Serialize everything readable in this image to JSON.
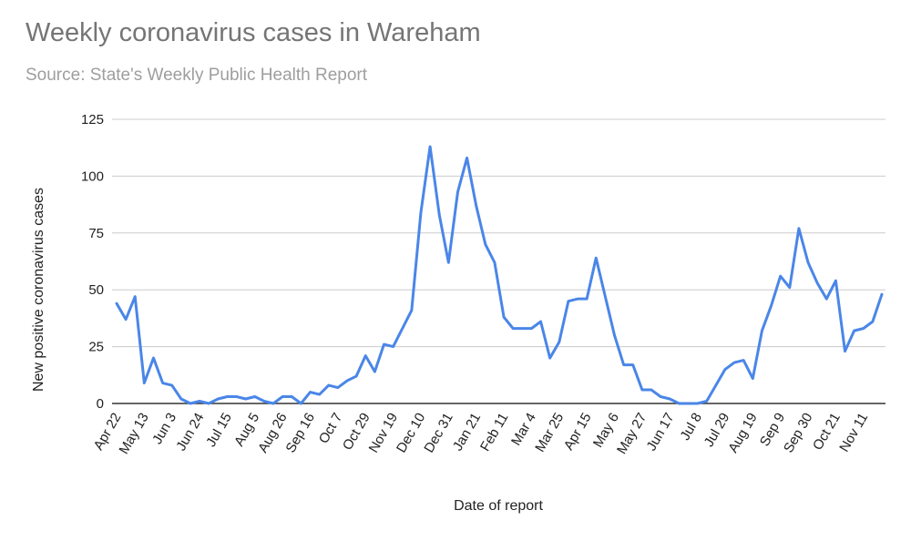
{
  "chart_data": {
    "type": "line",
    "title": "Weekly coronavirus cases in Wareham",
    "subtitle": "Source: State's Weekly Public Health Report",
    "xlabel": "Date of report",
    "ylabel": "New positive coronavirus cases",
    "ylim": [
      0,
      125
    ],
    "yticks": [
      0,
      25,
      50,
      75,
      100,
      125
    ],
    "grid": true,
    "legend": "none",
    "line_color": "#4a86e8",
    "x_tick_labels": [
      "Apr 22",
      "May 13",
      "Jun 3",
      "Jun 24",
      "Jul 15",
      "Aug 5",
      "Aug 26",
      "Sep 16",
      "Oct 7",
      "Oct 29",
      "Nov 19",
      "Dec 10",
      "Dec 31",
      "Jan 21",
      "Feb 11",
      "Mar 4",
      "Mar 25",
      "Apr 15",
      "May 6",
      "May 27",
      "Jun 17",
      "Jul 8",
      "Jul 29",
      "Aug 19",
      "Sep 9",
      "Sep 30",
      "Oct 21",
      "Nov 11"
    ],
    "series": [
      {
        "values": [
          44,
          37,
          47,
          9,
          20,
          9,
          8,
          2,
          0,
          1,
          0,
          2,
          3,
          3,
          2,
          3,
          1,
          0,
          3,
          3,
          0,
          5,
          4,
          8,
          7,
          10,
          12,
          21,
          14,
          26,
          25,
          33,
          41,
          84,
          113,
          83,
          62,
          93,
          108,
          87,
          70,
          62,
          38,
          33,
          33,
          33,
          36,
          20,
          27,
          45,
          46,
          46,
          64,
          47,
          30,
          17,
          17,
          6,
          6,
          3,
          2,
          0,
          0,
          0,
          1,
          8,
          15,
          18,
          19,
          11,
          32,
          43,
          56,
          51,
          77,
          62,
          53,
          46,
          54,
          23,
          32,
          33,
          36,
          48
        ]
      }
    ]
  }
}
